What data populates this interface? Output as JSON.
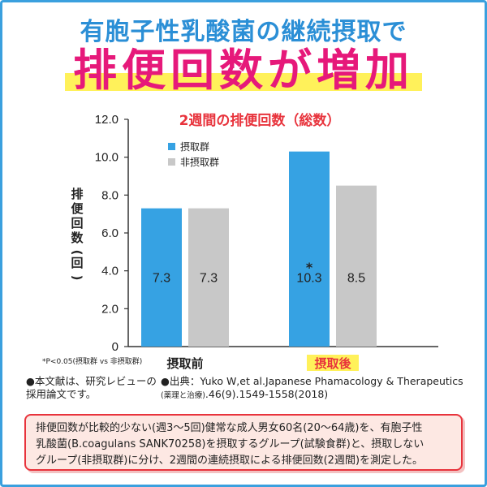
{
  "header": {
    "subtitle": "有胞子性乳酸菌の継続摂取で",
    "title": "排便回数が増加"
  },
  "colors": {
    "accent_blue": "#2b8fd6",
    "title_pink": "#e6197a",
    "highlight_yellow": "#fff15a",
    "series_blue": "#36a2e3",
    "series_gray": "#c8c8c8",
    "chart_title_red": "#e8333c"
  },
  "chart_data": {
    "type": "bar",
    "title": "2週間の排便回数（総数）",
    "ylabel": "排便回数(回)",
    "xlabel": "",
    "ylim": [
      0,
      12.0
    ],
    "yticks": [
      "0",
      "2.0",
      "4.0",
      "6.0",
      "8.0",
      "10.0",
      "12.0"
    ],
    "categories": [
      "摂取前",
      "摂取後"
    ],
    "series": [
      {
        "name": "摂取群",
        "values": [
          7.3,
          10.3
        ],
        "labels": [
          "7.3",
          "10.3"
        ]
      },
      {
        "name": "非摂取群",
        "values": [
          7.3,
          8.5
        ],
        "labels": [
          "7.3",
          "8.5"
        ]
      }
    ],
    "significance_marker": "*",
    "significance_note": "*P<0.05(摂取群 vs 非摂取群)",
    "legend_position": "top-left",
    "grid": false
  },
  "footnotes": {
    "left_line1": "●本文献は、研究レビューの",
    "left_line2": "採用論文です。",
    "right_line1": "●出典：Yuko W,et al.Japanese Phamacology & Therapeutics",
    "right_line2_small": "(薬理と治療)",
    "right_line2": ".46(9).1549-1558(2018)"
  },
  "note": {
    "line1": "排便回数が比較的少ない(週3～5回)健常な成人男女60名(20～64歳)を、有胞子性",
    "line2": "乳酸菌(B.coagulans SANK70258)を摂取するグループ(試験食群)と、摂取しない",
    "line3": "グループ(非摂取群)に分け、2週間の連続摂取による排便回数(2週間)を測定した。"
  }
}
